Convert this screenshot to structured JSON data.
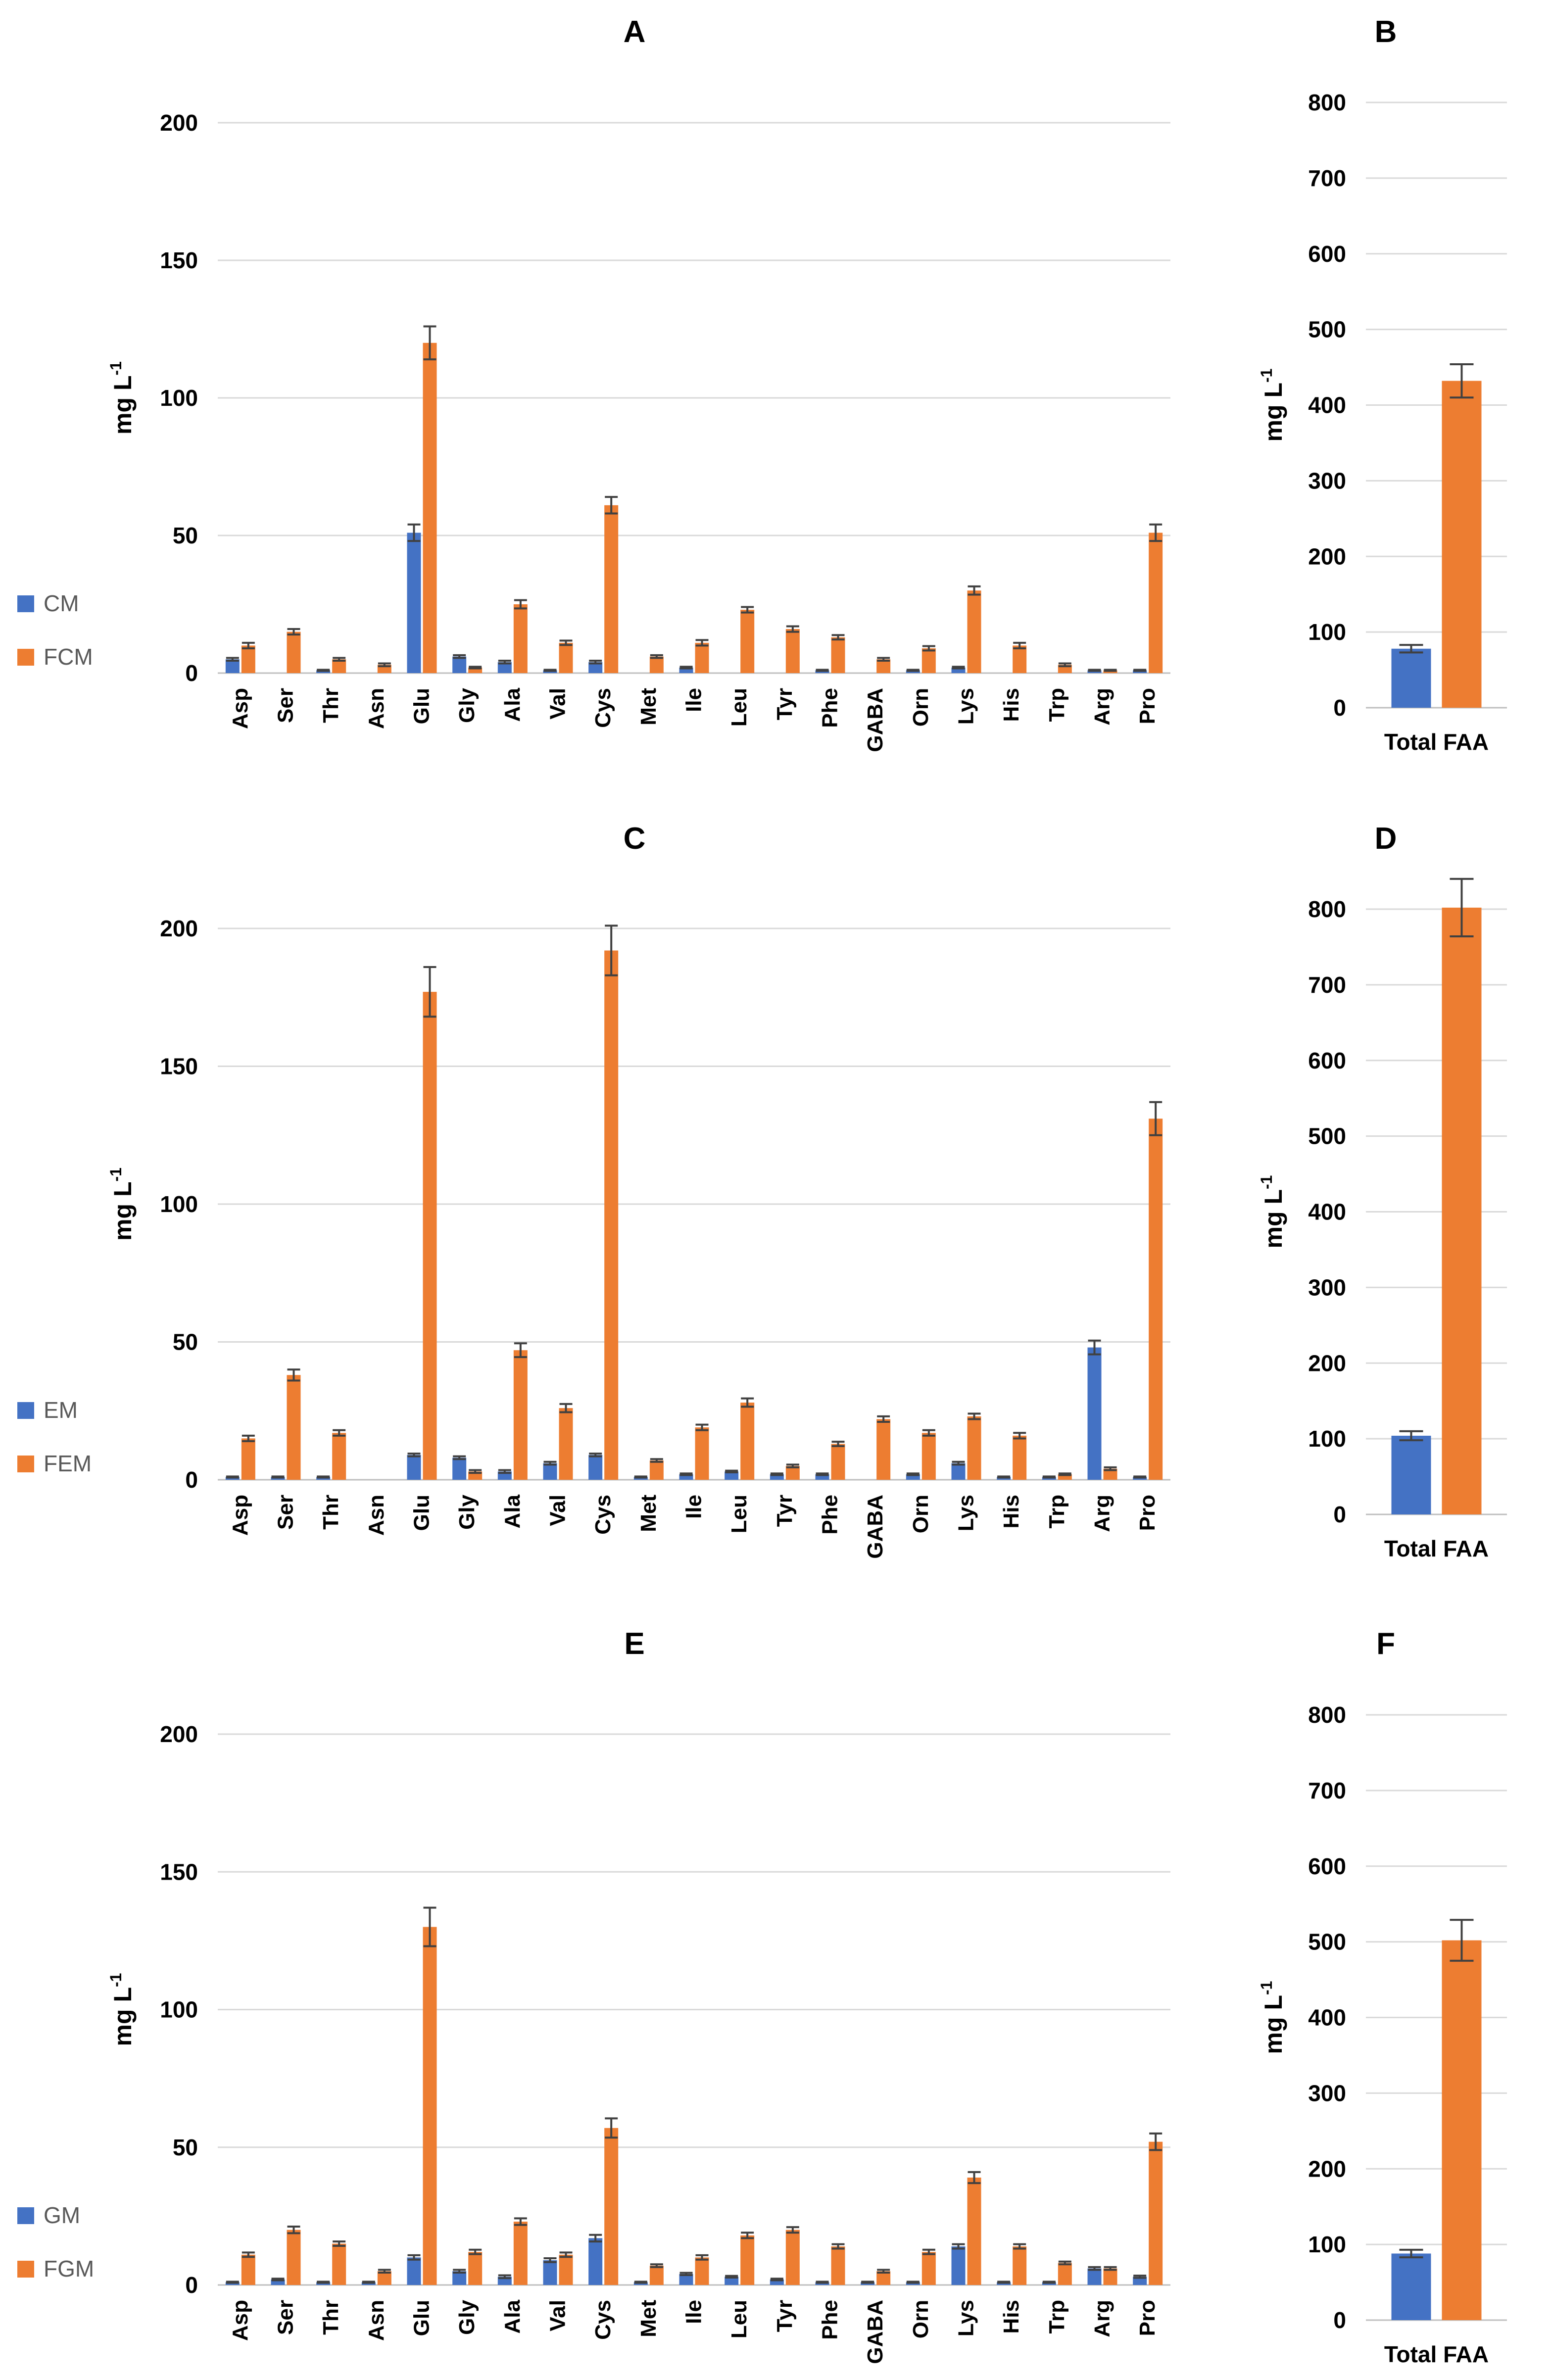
{
  "colors": {
    "blue": "#4472C4",
    "orange": "#ED7D31",
    "grid": "#D9D9D9",
    "error_bar": "#404040",
    "text": "#000000",
    "legend_text": "#595959"
  },
  "categories": [
    "Asp",
    "Ser",
    "Thr",
    "Asn",
    "Glu",
    "Gly",
    "Ala",
    "Val",
    "Cys",
    "Met",
    "Ile",
    "Leu",
    "Tyr",
    "Phe",
    "GABA",
    "Orn",
    "Lys",
    "His",
    "Trp",
    "Arg",
    "Pro"
  ],
  "chart_data": [
    {
      "id": "A",
      "type": "bar",
      "title": "A",
      "ylabel": "mg L-1",
      "ylim": [
        0,
        200
      ],
      "yticks": [
        0,
        50,
        100,
        150,
        200
      ],
      "legend_position": "left",
      "categories": [
        "Asp",
        "Ser",
        "Thr",
        "Asn",
        "Glu",
        "Gly",
        "Ala",
        "Val",
        "Cys",
        "Met",
        "Ile",
        "Leu",
        "Tyr",
        "Phe",
        "GABA",
        "Orn",
        "Lys",
        "His",
        "Trp",
        "Arg",
        "Pro"
      ],
      "series": [
        {
          "name": "CM",
          "color": "blue",
          "values": [
            5,
            0,
            1,
            0,
            51,
            6,
            4,
            1,
            4,
            0,
            2,
            0,
            0,
            1,
            0,
            1,
            2,
            0,
            0,
            1,
            1
          ],
          "errors": [
            0.5,
            0,
            0.2,
            0,
            3,
            0.5,
            0.5,
            0.2,
            0.5,
            0,
            0.3,
            0,
            0,
            0.2,
            0,
            0.2,
            0.3,
            0,
            0,
            0.2,
            0.2
          ]
        },
        {
          "name": "FCM",
          "color": "orange",
          "values": [
            10,
            15,
            5,
            3,
            120,
            2,
            25,
            11,
            61,
            6,
            11,
            23,
            16,
            13,
            5,
            9,
            30,
            10,
            3,
            1,
            51
          ],
          "errors": [
            1,
            1,
            0.5,
            0.5,
            6,
            0.3,
            1.5,
            0.8,
            3,
            0.5,
            1,
            1,
            1,
            0.8,
            0.5,
            0.8,
            1.5,
            1,
            0.5,
            0.2,
            3
          ]
        }
      ]
    },
    {
      "id": "B",
      "type": "bar",
      "title": "B",
      "ylabel": "mg L-1",
      "ylim": [
        0,
        800
      ],
      "yticks": [
        0,
        100,
        200,
        300,
        400,
        500,
        600,
        700,
        800
      ],
      "categories": [
        "Total FAA"
      ],
      "series": [
        {
          "name": "CM",
          "color": "blue",
          "values": [
            78
          ],
          "errors": [
            5
          ]
        },
        {
          "name": "FCM",
          "color": "orange",
          "values": [
            432
          ],
          "errors": [
            22
          ]
        }
      ]
    },
    {
      "id": "C",
      "type": "bar",
      "title": "C",
      "ylabel": "mg L-1",
      "ylim": [
        0,
        200
      ],
      "yticks": [
        0,
        50,
        100,
        150,
        200
      ],
      "legend_position": "left",
      "categories": [
        "Asp",
        "Ser",
        "Thr",
        "Asn",
        "Glu",
        "Gly",
        "Ala",
        "Val",
        "Cys",
        "Met",
        "Ile",
        "Leu",
        "Tyr",
        "Phe",
        "GABA",
        "Orn",
        "Lys",
        "His",
        "Trp",
        "Arg",
        "Pro"
      ],
      "series": [
        {
          "name": "EM",
          "color": "blue",
          "values": [
            1,
            1,
            1,
            0,
            9,
            8,
            3,
            6,
            9,
            1,
            2,
            3,
            2,
            2,
            0,
            2,
            6,
            1,
            1,
            48,
            1
          ],
          "errors": [
            0.2,
            0.2,
            0.2,
            0,
            0.5,
            0.5,
            0.5,
            0.5,
            0.5,
            0.2,
            0.3,
            0.3,
            0.3,
            0.3,
            0,
            0.3,
            0.5,
            0.2,
            0.2,
            2.5,
            0.2
          ]
        },
        {
          "name": "FEM",
          "color": "orange",
          "values": [
            15,
            38,
            17,
            0,
            177,
            3,
            47,
            26,
            192,
            7,
            19,
            28,
            5,
            13,
            22,
            17,
            23,
            16,
            2,
            4,
            131
          ],
          "errors": [
            1,
            2,
            1,
            0,
            9,
            0.5,
            2.5,
            1.5,
            9,
            0.5,
            1,
            1.5,
            0.5,
            0.8,
            1,
            1,
            1,
            1,
            0.3,
            0.5,
            6
          ]
        }
      ]
    },
    {
      "id": "D",
      "type": "bar",
      "title": "D",
      "ylabel": "mg L-1",
      "ylim": [
        0,
        800
      ],
      "yticks": [
        0,
        100,
        200,
        300,
        400,
        500,
        600,
        700,
        800
      ],
      "categories": [
        "Total FAA"
      ],
      "series": [
        {
          "name": "EM",
          "color": "blue",
          "values": [
            104
          ],
          "errors": [
            6
          ]
        },
        {
          "name": "FEM",
          "color": "orange",
          "values": [
            802
          ],
          "errors": [
            38
          ]
        }
      ]
    },
    {
      "id": "E",
      "type": "bar",
      "title": "E",
      "ylabel": "mg L-1",
      "ylim": [
        0,
        200
      ],
      "yticks": [
        0,
        50,
        100,
        150,
        200
      ],
      "legend_position": "left",
      "categories": [
        "Asp",
        "Ser",
        "Thr",
        "Asn",
        "Glu",
        "Gly",
        "Ala",
        "Val",
        "Cys",
        "Met",
        "Ile",
        "Leu",
        "Tyr",
        "Phe",
        "GABA",
        "Orn",
        "Lys",
        "His",
        "Trp",
        "Arg",
        "Pro"
      ],
      "series": [
        {
          "name": "GM",
          "color": "blue",
          "values": [
            1,
            2,
            1,
            1,
            10,
            5,
            3,
            9,
            17,
            1,
            4,
            3,
            2,
            1,
            1,
            1,
            14,
            1,
            1,
            6,
            3
          ],
          "errors": [
            0.2,
            0.3,
            0.2,
            0.2,
            0.8,
            0.5,
            0.5,
            0.7,
            1.2,
            0.2,
            0.4,
            0.3,
            0.3,
            0.2,
            0.2,
            0.2,
            0.8,
            0.2,
            0.2,
            0.5,
            0.4
          ]
        },
        {
          "name": "FGM",
          "color": "orange",
          "values": [
            11,
            20,
            15,
            5,
            130,
            12,
            23,
            11,
            57,
            7,
            10,
            18,
            20,
            14,
            5,
            12,
            39,
            14,
            8,
            6,
            52
          ],
          "errors": [
            0.8,
            1.2,
            0.8,
            0.5,
            7,
            0.8,
            1.2,
            0.8,
            3.5,
            0.5,
            0.8,
            1,
            1,
            0.8,
            0.5,
            0.8,
            2,
            0.8,
            0.5,
            0.5,
            3
          ]
        }
      ]
    },
    {
      "id": "F",
      "type": "bar",
      "title": "F",
      "ylabel": "mg L-1",
      "ylim": [
        0,
        800
      ],
      "yticks": [
        0,
        100,
        200,
        300,
        400,
        500,
        600,
        700,
        800
      ],
      "categories": [
        "Total FAA"
      ],
      "series": [
        {
          "name": "GM",
          "color": "blue",
          "values": [
            88
          ],
          "errors": [
            5
          ]
        },
        {
          "name": "FGM",
          "color": "orange",
          "values": [
            502
          ],
          "errors": [
            27
          ]
        }
      ]
    }
  ]
}
